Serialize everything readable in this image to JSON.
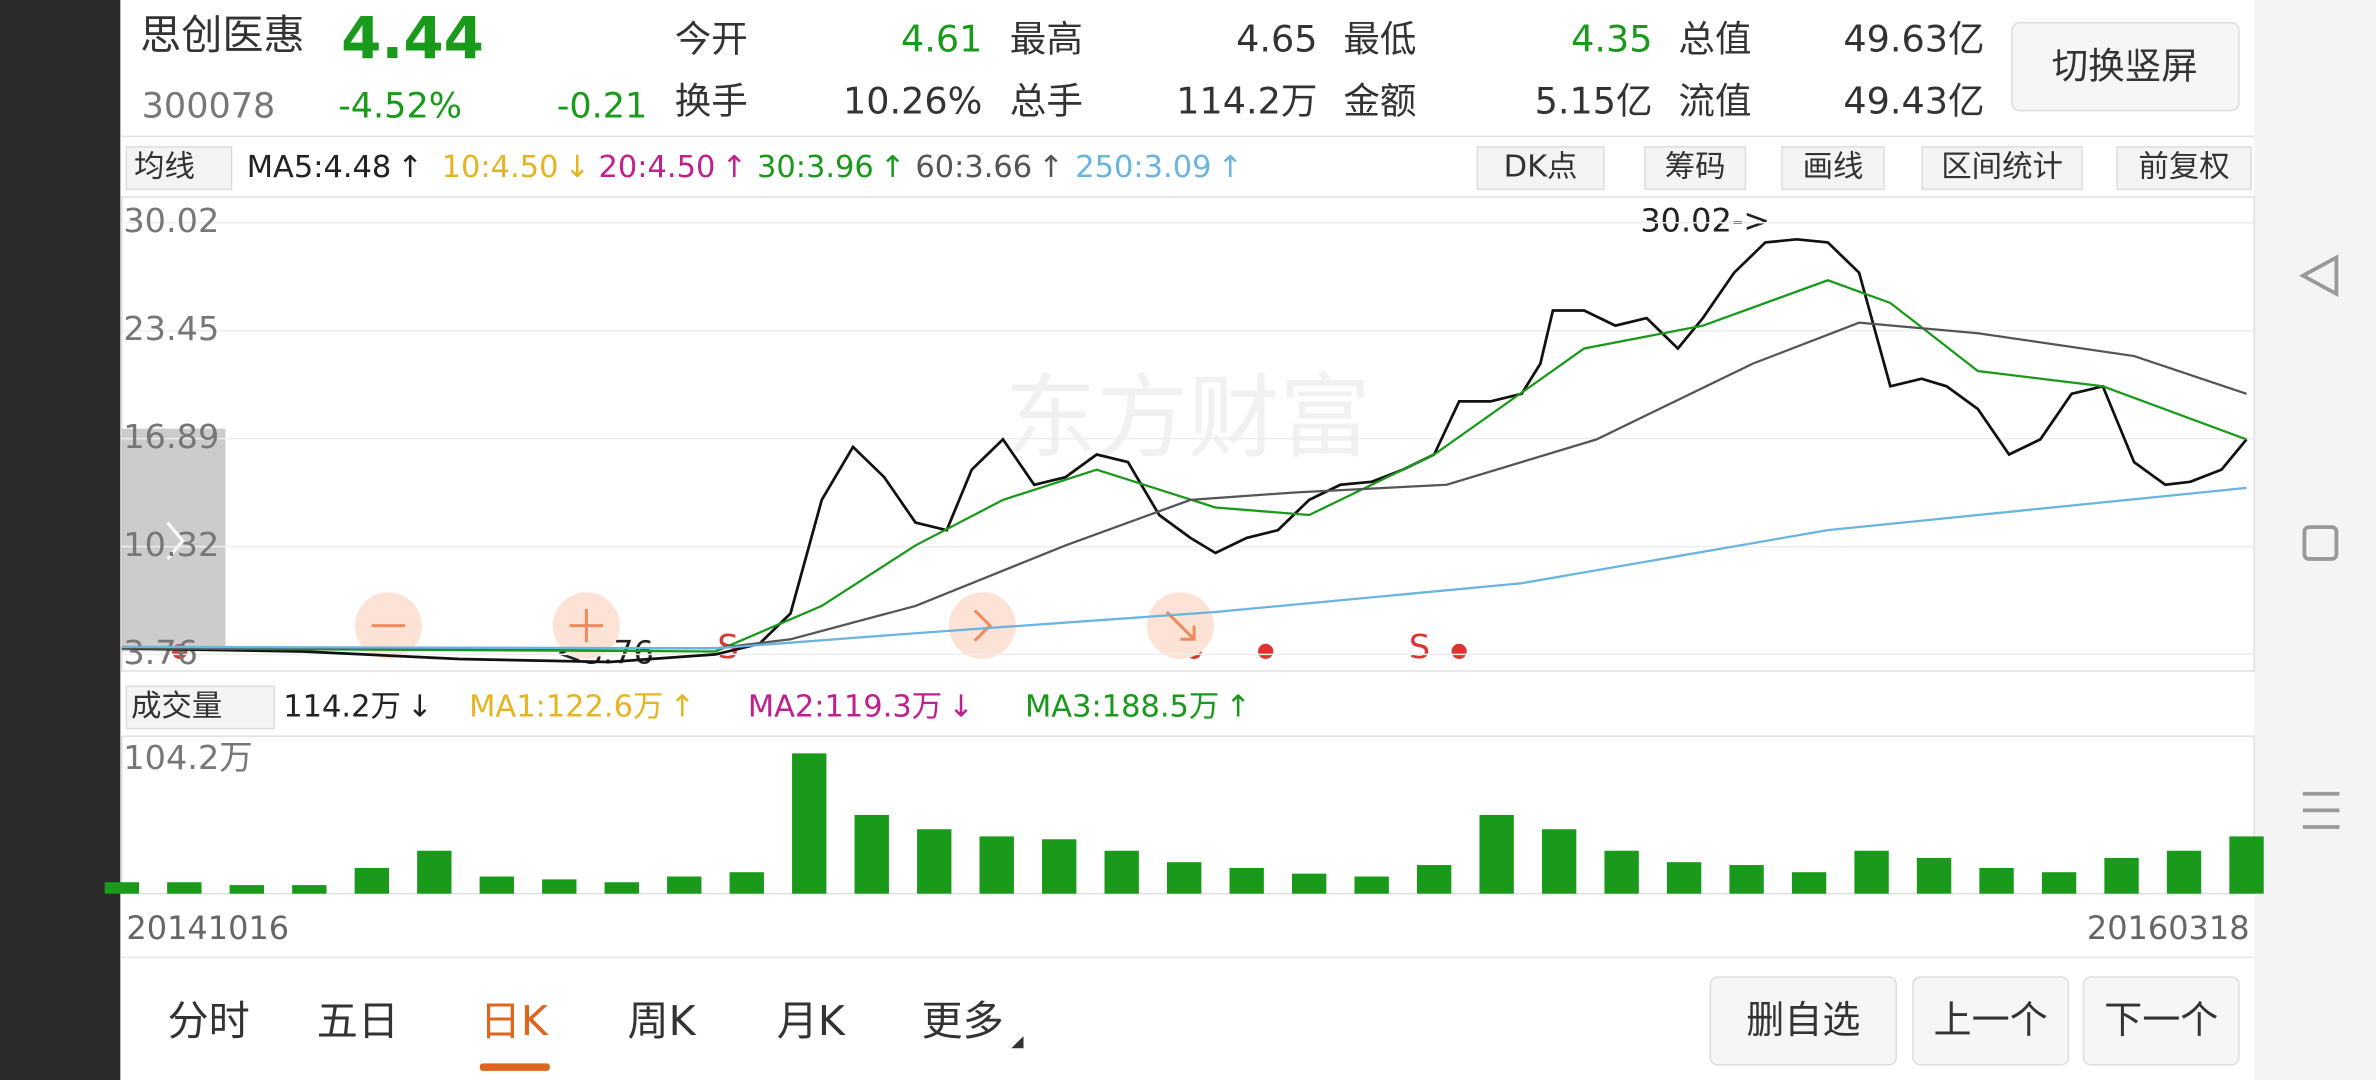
{
  "header": {
    "name": "思创医惠",
    "price": "4.44",
    "code": "300078",
    "change_pct": "-4.52%",
    "change": "-0.21",
    "stats": [
      {
        "label": "今开",
        "value": "4.61",
        "color": "#1a9a1a"
      },
      {
        "label": "最高",
        "value": "4.65",
        "color": "#333333"
      },
      {
        "label": "最低",
        "value": "4.35",
        "color": "#1a9a1a"
      },
      {
        "label": "总值",
        "value": "49.63亿",
        "color": "#333333"
      },
      {
        "label": "换手",
        "value": "10.26%",
        "color": "#333333"
      },
      {
        "label": "总手",
        "value": "114.2万",
        "color": "#333333"
      },
      {
        "label": "金额",
        "value": "5.15亿",
        "color": "#333333"
      },
      {
        "label": "流值",
        "value": "49.43亿",
        "color": "#333333"
      }
    ],
    "button": "切换竖屏"
  },
  "ma_bar": {
    "selector": "均线",
    "items": [
      {
        "text": "MA5:4.48",
        "arrow": "↑",
        "color": "#222222"
      },
      {
        "text": "10:4.50",
        "arrow": "↓",
        "color": "#e6b422"
      },
      {
        "text": "20:4.50",
        "arrow": "↑",
        "color": "#c0208f"
      },
      {
        "text": "30:3.96",
        "arrow": "↑",
        "color": "#1a9a1a"
      },
      {
        "text": "60:3.66",
        "arrow": "↑",
        "color": "#555555"
      },
      {
        "text": "250:3.09",
        "arrow": "↑",
        "color": "#6ab4e0"
      }
    ]
  },
  "tools": [
    "DK点",
    "筹码",
    "画线",
    "区间统计",
    "前复权"
  ],
  "watermark": "东方财富",
  "annotations": {
    "high": "30.02->",
    "low": "<3.76",
    "signals": [
      "S",
      "S"
    ]
  },
  "chart_data": [
    {
      "type": "line",
      "xlim": [
        0,
        340
      ],
      "ylim": [
        2.75,
        31.59
      ],
      "yticks": [
        30.02,
        23.45,
        16.89,
        10.32,
        3.76
      ],
      "grid": true,
      "series": [
        {
          "color": "#111111",
          "x": [
            0,
            29,
            54,
            78,
            95,
            102,
            107,
            112,
            117,
            122,
            127,
            132,
            136,
            141,
            146,
            151,
            156,
            161,
            166,
            171,
            175,
            180,
            185,
            190,
            195,
            200,
            205,
            210,
            214,
            219,
            224,
            227,
            229,
            234,
            239,
            244,
            249,
            253,
            258,
            263,
            268,
            273,
            278,
            283,
            288,
            292,
            297,
            302,
            307,
            312,
            317,
            322,
            327,
            331,
            336,
            340
          ],
          "values": [
            4.13,
            3.94,
            3.48,
            3.3,
            3.76,
            4.4,
            6.25,
            13.16,
            16.38,
            14.54,
            11.78,
            11.32,
            15.0,
            16.84,
            14.08,
            14.54,
            15.92,
            15.46,
            12.24,
            10.85,
            9.93,
            10.85,
            11.32,
            13.16,
            14.08,
            14.26,
            15.0,
            15.92,
            19.15,
            19.15,
            19.61,
            21.45,
            24.68,
            24.68,
            23.76,
            24.22,
            22.37,
            24.22,
            26.98,
            28.82,
            29.01,
            28.82,
            26.98,
            20.07,
            20.53,
            20.07,
            18.69,
            15.92,
            16.84,
            19.61,
            20.07,
            15.46,
            14.08,
            14.26,
            15.0,
            16.84
          ]
        },
        {
          "color": "#1a9a1a",
          "x": [
            0,
            95,
            112,
            127,
            141,
            156,
            175,
            190,
            210,
            234,
            253,
            273,
            283,
            297,
            317,
            340
          ],
          "values": [
            4.13,
            3.94,
            6.71,
            10.39,
            13.16,
            15.0,
            12.7,
            12.24,
            15.92,
            22.37,
            23.76,
            26.52,
            25.14,
            21.0,
            20.07,
            16.84
          ]
        },
        {
          "color": "#555555",
          "x": [
            0,
            95,
            107,
            127,
            151,
            171,
            188,
            212,
            236,
            261,
            278,
            297,
            322,
            340
          ],
          "values": [
            4.13,
            4.13,
            4.68,
            6.71,
            10.39,
            13.16,
            13.62,
            14.08,
            16.84,
            21.45,
            23.94,
            23.3,
            21.91,
            19.61
          ]
        },
        {
          "color": "#6ab4e0",
          "x": [
            0,
            95,
            127,
            175,
            224,
            273,
            340
          ],
          "values": [
            4.22,
            4.13,
            5.05,
            6.34,
            8.09,
            11.32,
            13.89
          ]
        }
      ]
    },
    {
      "type": "bar",
      "xlim": [
        0,
        340
      ],
      "ylim": [
        0,
        110
      ],
      "yticks": [
        {
          "value": 104.2,
          "label": "104.2万"
        }
      ],
      "color": "#1a9a1a",
      "x": [
        0,
        10,
        20,
        30,
        40,
        50,
        60,
        70,
        80,
        90,
        100,
        110,
        120,
        130,
        140,
        150,
        160,
        170,
        180,
        190,
        200,
        210,
        220,
        230,
        240,
        250,
        260,
        270,
        280,
        290,
        300,
        310,
        320,
        330,
        340
      ],
      "values": [
        8,
        8,
        6,
        6,
        18,
        30,
        12,
        10,
        8,
        12,
        15,
        98,
        55,
        45,
        40,
        38,
        30,
        22,
        18,
        14,
        12,
        20,
        55,
        45,
        30,
        22,
        20,
        15,
        30,
        25,
        18,
        15,
        25,
        30,
        40
      ]
    }
  ],
  "volume_bar": {
    "selector": "成交量",
    "items": [
      {
        "text": "114.2万",
        "arrow": "↓",
        "color": "#222222"
      },
      {
        "text": "MA1:122.6万",
        "arrow": "↑",
        "color": "#e6b422"
      },
      {
        "text": "MA2:119.3万",
        "arrow": "↓",
        "color": "#c0208f"
      },
      {
        "text": "MA3:188.5万",
        "arrow": "↑",
        "color": "#1a9a1a"
      }
    ]
  },
  "dates": [
    "20141016",
    "20160318"
  ],
  "tabs": [
    "分时",
    "五日",
    "日K",
    "周K",
    "月K",
    "更多"
  ],
  "active_tab": 2,
  "actions": [
    "删自选",
    "上一个",
    "下一个"
  ]
}
